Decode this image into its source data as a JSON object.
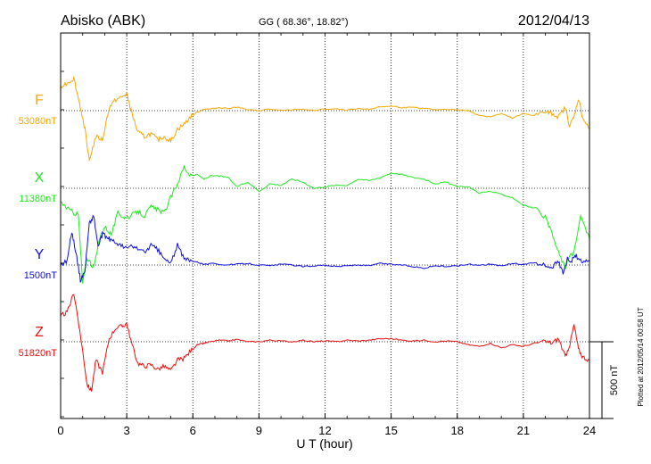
{
  "header": {
    "station": "Abisko (ABK)",
    "coords": "GG ( 68.36°,  18.82°)",
    "date": "2012/04/13"
  },
  "side_note": "Plotted at 2012/05/14 00:58 UT",
  "scale_label": "500 nT",
  "colors": {
    "F": "#f5a800",
    "X": "#22e622",
    "Y": "#1010dd",
    "Z": "#e81010",
    "axis": "#000000",
    "grid": "#000000"
  },
  "chart_data": {
    "type": "line",
    "xlabel": "U T (hour)",
    "xlim": [
      0,
      24
    ],
    "x_ticks": [
      "0",
      "3",
      "6",
      "9",
      "12",
      "15",
      "18",
      "21",
      "24"
    ],
    "grid": true,
    "series": [
      {
        "name": "F",
        "baseline_label": "53080nT",
        "x": [
          0,
          0.3,
          0.6,
          0.9,
          1.1,
          1.3,
          1.6,
          1.9,
          2.2,
          2.5,
          2.8,
          3.0,
          3.2,
          3.5,
          3.8,
          4.1,
          4.4,
          4.7,
          5.0,
          5.3,
          5.6,
          5.9,
          6.2,
          6.5,
          6.8,
          7.2,
          7.6,
          8.0,
          8.5,
          9.0,
          9.5,
          10.0,
          10.5,
          11.0,
          11.5,
          12.0,
          12.5,
          13.0,
          13.5,
          14.0,
          14.5,
          15.0,
          15.5,
          16.0,
          16.5,
          17.0,
          17.5,
          18.0,
          18.5,
          19.0,
          19.5,
          20.0,
          20.5,
          21.0,
          21.5,
          22.0,
          22.3,
          22.6,
          22.9,
          23.1,
          23.3,
          23.5,
          23.7,
          24.0
        ],
        "values": [
          160,
          180,
          210,
          20,
          -120,
          -320,
          -170,
          -190,
          20,
          70,
          90,
          110,
          0,
          -140,
          -170,
          -150,
          -190,
          -170,
          -200,
          -120,
          -90,
          -40,
          -10,
          10,
          10,
          20,
          15,
          25,
          5,
          0,
          10,
          0,
          5,
          10,
          0,
          10,
          10,
          5,
          10,
          10,
          25,
          30,
          20,
          20,
          15,
          5,
          10,
          5,
          0,
          -30,
          -40,
          -20,
          -50,
          -20,
          -30,
          -10,
          -20,
          -40,
          20,
          -100,
          -40,
          80,
          -50,
          -120
        ]
      },
      {
        "name": "X",
        "baseline_label": "11380nT",
        "x": [
          0,
          0.3,
          0.6,
          0.8,
          1.0,
          1.2,
          1.5,
          1.8,
          2.0,
          2.3,
          2.6,
          2.9,
          3.2,
          3.5,
          3.8,
          4.1,
          4.4,
          4.7,
          5.0,
          5.3,
          5.6,
          5.9,
          6.2,
          6.5,
          6.8,
          7.2,
          7.6,
          8.0,
          8.5,
          9.0,
          9.5,
          10.0,
          10.5,
          11.0,
          11.5,
          12.0,
          12.5,
          13.0,
          13.5,
          14.0,
          14.5,
          15.0,
          15.5,
          16.0,
          16.5,
          17.0,
          17.5,
          18.0,
          18.5,
          19.0,
          19.5,
          20.0,
          20.5,
          21.0,
          21.5,
          22.0,
          22.3,
          22.6,
          22.9,
          23.1,
          23.3,
          23.6,
          24.0
        ],
        "values": [
          -90,
          -130,
          -160,
          -170,
          -620,
          -450,
          -520,
          -310,
          -250,
          -300,
          -160,
          -190,
          -180,
          -150,
          -180,
          -120,
          -140,
          -160,
          -60,
          30,
          140,
          80,
          90,
          60,
          80,
          80,
          70,
          10,
          40,
          -20,
          30,
          20,
          60,
          40,
          0,
          10,
          20,
          20,
          60,
          50,
          70,
          100,
          90,
          70,
          60,
          30,
          40,
          10,
          10,
          -30,
          -20,
          -40,
          -60,
          -110,
          -130,
          -190,
          -300,
          -420,
          -520,
          -440,
          -420,
          -180,
          -330
        ]
      },
      {
        "name": "Y",
        "baseline_label": "1500nT",
        "x": [
          0,
          0.3,
          0.5,
          0.7,
          0.9,
          1.1,
          1.3,
          1.5,
          1.7,
          1.9,
          2.1,
          2.3,
          2.6,
          2.9,
          3.2,
          3.5,
          3.8,
          4.1,
          4.4,
          4.7,
          5.0,
          5.3,
          5.6,
          5.9,
          6.2,
          6.5,
          7.0,
          7.5,
          8.0,
          8.5,
          9.0,
          9.5,
          10.0,
          10.5,
          11.0,
          11.5,
          12.0,
          12.5,
          13.0,
          13.5,
          14.0,
          14.5,
          15.0,
          15.5,
          16.0,
          16.5,
          17.0,
          17.5,
          18.0,
          18.5,
          19.0,
          19.5,
          20.0,
          20.5,
          21.0,
          21.5,
          22.0,
          22.3,
          22.6,
          22.8,
          23.0,
          23.2,
          23.4,
          23.7,
          24.0
        ],
        "values": [
          0,
          30,
          220,
          80,
          -100,
          -40,
          270,
          320,
          120,
          200,
          180,
          160,
          140,
          110,
          120,
          110,
          80,
          130,
          100,
          40,
          10,
          130,
          40,
          30,
          20,
          5,
          10,
          0,
          5,
          10,
          0,
          -5,
          5,
          0,
          -10,
          -5,
          0,
          -10,
          -5,
          0,
          -5,
          10,
          5,
          0,
          -10,
          -20,
          -5,
          -10,
          -5,
          5,
          0,
          5,
          -5,
          10,
          5,
          15,
          -5,
          -10,
          20,
          -50,
          40,
          30,
          60,
          10,
          30
        ]
      },
      {
        "name": "Z",
        "baseline_label": "51820nT",
        "x": [
          0,
          0.3,
          0.6,
          0.8,
          1.0,
          1.2,
          1.4,
          1.6,
          1.9,
          2.2,
          2.5,
          2.8,
          3.0,
          3.2,
          3.5,
          3.8,
          4.1,
          4.4,
          4.7,
          5.0,
          5.3,
          5.6,
          5.9,
          6.2,
          6.5,
          6.8,
          7.2,
          7.6,
          8.0,
          8.5,
          9.0,
          9.5,
          10.0,
          10.5,
          11.0,
          11.5,
          12.0,
          12.5,
          13.0,
          13.5,
          14.0,
          14.5,
          15.0,
          15.5,
          16.0,
          16.5,
          17.0,
          17.5,
          18.0,
          18.5,
          19.0,
          19.5,
          20.0,
          20.5,
          21.0,
          21.5,
          22.0,
          22.3,
          22.6,
          22.9,
          23.1,
          23.3,
          23.5,
          23.7,
          24.0
        ],
        "values": [
          170,
          190,
          320,
          140,
          -60,
          -280,
          -320,
          -120,
          -200,
          20,
          90,
          100,
          120,
          0,
          -140,
          -160,
          -150,
          -180,
          -160,
          -190,
          -120,
          -110,
          -60,
          -20,
          -10,
          0,
          10,
          5,
          15,
          0,
          0,
          10,
          5,
          0,
          10,
          0,
          5,
          0,
          10,
          5,
          10,
          20,
          20,
          10,
          5,
          10,
          0,
          5,
          0,
          -20,
          -30,
          -10,
          -40,
          -20,
          -30,
          -10,
          0,
          -10,
          20,
          -100,
          -20,
          110,
          -50,
          -100,
          -120
        ]
      }
    ]
  }
}
